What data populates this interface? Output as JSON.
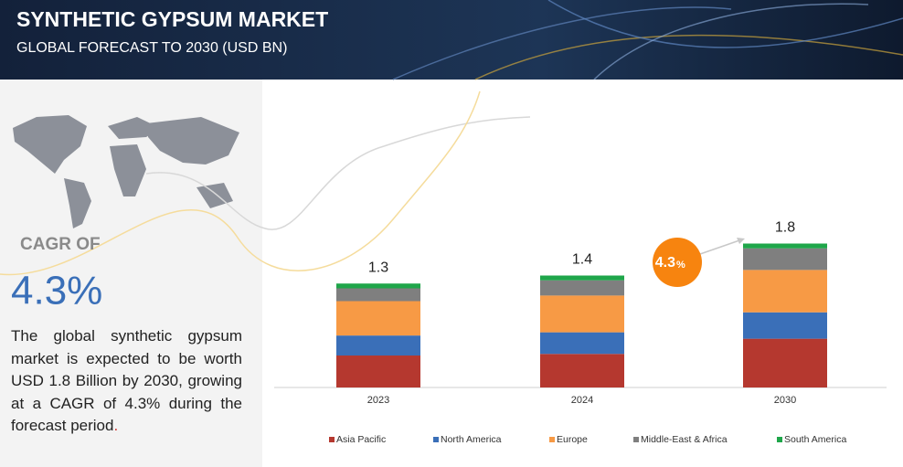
{
  "header": {
    "title": "SYNTHETIC GYPSUM MARKET",
    "subtitle": "GLOBAL FORECAST TO 2030 (USD BN)"
  },
  "left_panel": {
    "cagr_label": "CAGR OF",
    "cagr_value": "4.3%",
    "summary": "The global synthetic gypsum market is expected to be worth USD  1.8 Billion by 2030, growing at a CAGR of 4.3% during the forecast period",
    "summary_end": "."
  },
  "chart_data": {
    "type": "bar",
    "stacked": true,
    "categories": [
      "2023",
      "2024",
      "2030"
    ],
    "series": [
      {
        "name": "Asia Pacific",
        "color": "#b5382f",
        "values": [
          0.4,
          0.42,
          0.61
        ]
      },
      {
        "name": "North America",
        "color": "#3a6fb8",
        "values": [
          0.25,
          0.27,
          0.33
        ]
      },
      {
        "name": "Europe",
        "color": "#f79a45",
        "values": [
          0.43,
          0.46,
          0.53
        ]
      },
      {
        "name": "Middle-East & Africa",
        "color": "#7f7f7f",
        "values": [
          0.16,
          0.19,
          0.27
        ]
      },
      {
        "name": "South America",
        "color": "#1fa64a",
        "values": [
          0.06,
          0.06,
          0.06
        ]
      }
    ],
    "totals": [
      1.3,
      1.4,
      1.8
    ],
    "cagr_bubble": {
      "value": "4.3",
      "unit": "%"
    }
  }
}
